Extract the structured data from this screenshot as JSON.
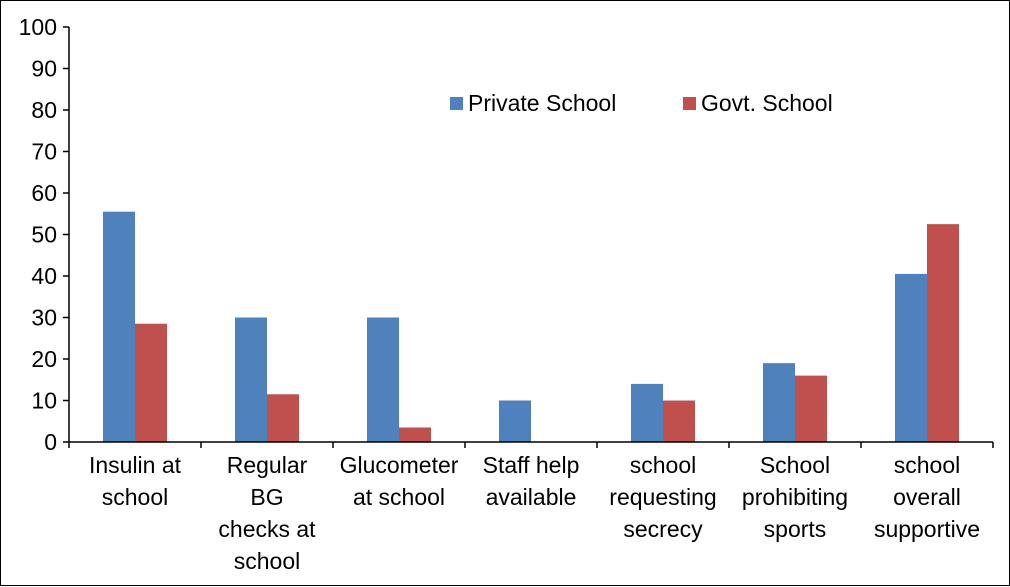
{
  "chart_data": {
    "type": "bar",
    "title": "",
    "xlabel": "",
    "ylabel": "",
    "ylim": [
      0,
      100
    ],
    "yticks": [
      0,
      10,
      20,
      30,
      40,
      50,
      60,
      70,
      80,
      90,
      100
    ],
    "grid": false,
    "legend_position": "top-center",
    "categories": [
      [
        "Insulin at",
        "school"
      ],
      [
        "Regular",
        "BG",
        "checks at",
        "school"
      ],
      [
        "Glucometer",
        "at school"
      ],
      [
        "Staff help",
        "available"
      ],
      [
        "school",
        "requesting",
        "secrecy"
      ],
      [
        "School",
        "prohibiting",
        "sports"
      ],
      [
        "school",
        "overall",
        "supportive"
      ]
    ],
    "series": [
      {
        "name": "Private School",
        "color": "#4f81bd",
        "values": [
          55.5,
          30,
          30,
          10,
          14,
          19,
          40.5
        ]
      },
      {
        "name": "Govt. School",
        "color": "#c0504d",
        "values": [
          28.5,
          11.5,
          3.5,
          0,
          10,
          16,
          52.5
        ]
      }
    ]
  }
}
